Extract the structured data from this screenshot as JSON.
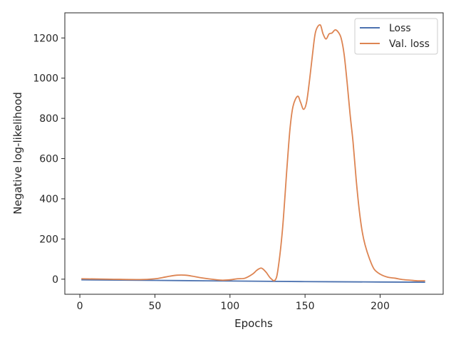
{
  "chart_data": {
    "type": "line",
    "title": "",
    "xlabel": "Epochs",
    "ylabel": "Negative log-likelihood",
    "xlim": [
      -10,
      242
    ],
    "ylim": [
      -75,
      1325
    ],
    "xticks": [
      0,
      50,
      100,
      150,
      200
    ],
    "yticks": [
      0,
      200,
      400,
      600,
      800,
      1000,
      1200
    ],
    "grid": false,
    "legend_position": "top-right",
    "series": [
      {
        "name": "Loss",
        "color": "#4c72b0",
        "x": [
          1,
          50,
          100,
          150,
          200,
          230
        ],
        "y": [
          -3,
          -6,
          -9,
          -12,
          -14,
          -15
        ]
      },
      {
        "name": "Val. loss",
        "color": "#dd8452",
        "x": [
          1,
          20,
          40,
          50,
          55,
          60,
          65,
          70,
          75,
          80,
          90,
          95,
          100,
          105,
          110,
          115,
          118,
          121,
          124,
          127,
          130,
          132,
          135,
          138,
          140,
          142,
          145,
          147,
          149,
          151,
          153,
          155,
          157,
          160,
          162,
          164,
          166,
          168,
          170,
          172,
          174,
          176,
          178,
          180,
          182,
          184,
          186,
          188,
          190,
          193,
          196,
          200,
          205,
          210,
          215,
          220,
          225,
          230
        ],
        "y": [
          2,
          0,
          -2,
          2,
          8,
          15,
          20,
          20,
          15,
          8,
          -2,
          -5,
          -3,
          2,
          5,
          25,
          45,
          55,
          35,
          5,
          -5,
          50,
          250,
          560,
          750,
          860,
          910,
          880,
          845,
          880,
          990,
          1120,
          1230,
          1265,
          1220,
          1195,
          1220,
          1225,
          1240,
          1230,
          1200,
          1120,
          980,
          820,
          680,
          500,
          350,
          240,
          170,
          100,
          50,
          25,
          10,
          5,
          -2,
          -5,
          -8,
          -8
        ]
      }
    ]
  }
}
